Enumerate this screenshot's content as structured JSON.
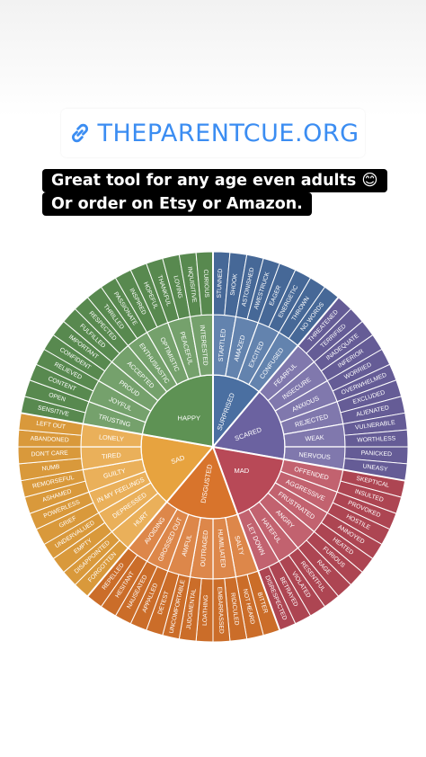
{
  "header": {
    "link_text": "THEPARENTCUE.ORG",
    "link_icon": "link-icon",
    "link_color": "#3b8df2"
  },
  "caption": {
    "line1": "Great tool for any age even adults 😊",
    "line2": "Or order on Etsy or Amazon."
  },
  "wheel": {
    "groups": [
      {
        "core": "SURPRISED",
        "color": "#4a6fa1",
        "mid": [
          "STARTLED",
          "AMAZED",
          "EXCITED",
          "CONFUSED"
        ],
        "outer": [
          "STUNNED",
          "SHOOK",
          "ASTONISHED",
          "AWESTRUCK",
          "EAGER",
          "ENERGETIC",
          "THROWN",
          "NO WORDS"
        ]
      },
      {
        "core": "SCARED",
        "color": "#6b62a0",
        "mid": [
          "FEARFUL",
          "INSECURE",
          "ANXIOUS",
          "REJECTED",
          "WEAK",
          "NERVOUS"
        ],
        "outer": [
          "THREATENED",
          "TERRIFIED",
          "INADEQUATE",
          "INFERIOR",
          "WORRIED",
          "OVERWHELMED",
          "EXCLUDED",
          "ALIENATED",
          "VULNERABLE",
          "WORTHLESS",
          "PANICKED",
          "UNEASY"
        ]
      },
      {
        "core": "MAD",
        "color": "#b84957",
        "mid": [
          "OFFENDED",
          "AGGRESSIVE",
          "FRUSTRATED",
          "ANGRY",
          "HATEFUL",
          "LET DOWN"
        ],
        "outer": [
          "SKEPTICAL",
          "INSULTED",
          "PROVOKED",
          "HOSTILE",
          "ANNOYED",
          "HEATED",
          "FURIOUS",
          "RAGE",
          "RESENTFUL",
          "VIOLATED",
          "BETRAYED",
          "DISRESPECTED"
        ]
      },
      {
        "core": "DISGUSTED",
        "color": "#d8742c",
        "mid": [
          "SALTY",
          "HUMILIATED",
          "OUTRAGED",
          "AWFUL",
          "GROSSED OUT",
          "AVOIDING"
        ],
        "outer": [
          "BITTER",
          "NOT HEARD",
          "RIDICULED",
          "EMBARRASSED",
          "LOATHING",
          "JUDGMENTAL",
          "UNCOMFORTABLE",
          "DETEST",
          "APPALLED",
          "NAUSEATED",
          "HESITANT",
          "REPELLED"
        ]
      },
      {
        "core": "SAD",
        "color": "#e7a33f",
        "mid": [
          "HURT",
          "DEPRESSED",
          "IN MY FEELINGS",
          "GUILTY",
          "TIRED",
          "LONELY"
        ],
        "outer": [
          "FORGOTTEN",
          "DISAPPOINTED",
          "EMPTY",
          "UNDERVALUED",
          "GRIEF",
          "POWERLESS",
          "ASHAMED",
          "REMORSEFUL",
          "NUMB",
          "DON'T CARE",
          "ABANDONED",
          "LEFT OUT"
        ]
      },
      {
        "core": "HAPPY",
        "color": "#5e9254",
        "mid": [
          "TRUSTING",
          "JOYFUL",
          "PROUD",
          "ACCEPTED",
          "ENTHUSIASTIC",
          "OPTIMISTIC",
          "PEACEFUL",
          "INTERESTED"
        ],
        "outer": [
          "SENSITIVE",
          "OPEN",
          "CONTENT",
          "RELIEVED",
          "CONFIDENT",
          "IMPORTANT",
          "FULFILLED",
          "RESPECTED",
          "THRILLED",
          "PASSIONATE",
          "INSPIRED",
          "HOPEFUL",
          "THANKFUL",
          "LOVING",
          "INQUISITIVE",
          "CURIOUS"
        ]
      }
    ]
  }
}
